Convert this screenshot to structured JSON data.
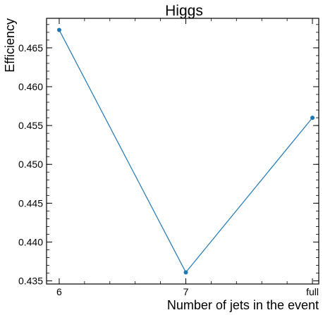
{
  "chart_data": {
    "type": "line",
    "title": "Higgs",
    "xlabel": "Number of jets in the event",
    "ylabel": "Efficiency",
    "categories": [
      "6",
      "7",
      "full"
    ],
    "series": [
      {
        "values": [
          0.4673,
          0.4361,
          0.456
        ],
        "color": "#1f77b4"
      }
    ],
    "xlim": [
      -0.1,
      2.05
    ],
    "ylim": [
      0.4346,
      0.4688
    ],
    "yticks": [
      0.435,
      0.44,
      0.445,
      0.45,
      0.455,
      0.46,
      0.465
    ],
    "ytick_labels": [
      "0.435",
      "0.440",
      "0.445",
      "0.450",
      "0.455",
      "0.460",
      "0.465"
    ],
    "grid": false,
    "legend": false
  }
}
